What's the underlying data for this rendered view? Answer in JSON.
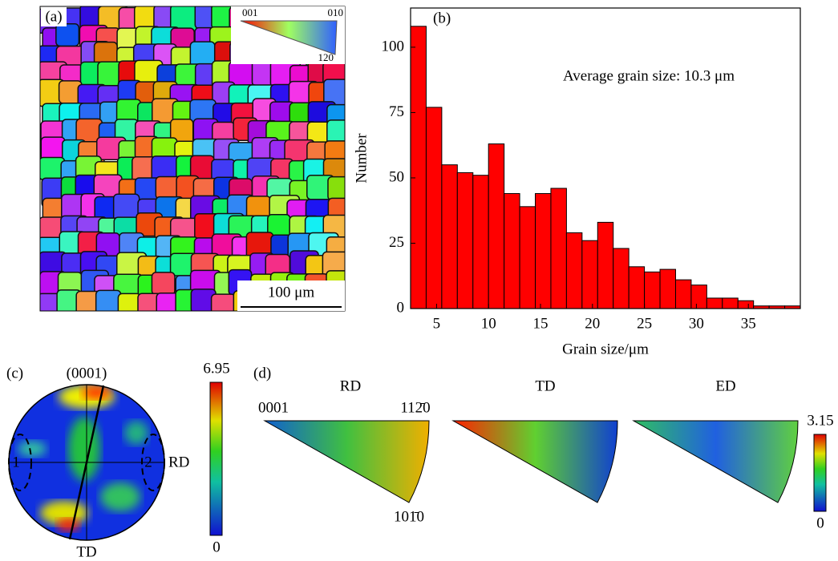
{
  "chart_data": [
    {
      "type": "map",
      "label": "(a)",
      "legend_labels": [
        "001",
        "010",
        "120"
      ],
      "scale_bar": "100 μm"
    },
    {
      "type": "histogram",
      "label": "(b)",
      "annotation": "Average grain size: 10.3 μm",
      "xlabel": "Grain size/μm",
      "ylabel": "Number",
      "color": "#ff0000",
      "bins": [
        2.5,
        4,
        5.5,
        7,
        8.5,
        10,
        11.5,
        13,
        14.5,
        16,
        17.5,
        19,
        20.5,
        22,
        23.5,
        25,
        26.5,
        28,
        29.5,
        31,
        32.5,
        34,
        35.5,
        37,
        38.5,
        40
      ],
      "values": [
        108,
        77,
        55,
        52,
        51,
        63,
        44,
        39,
        44,
        46,
        29,
        26,
        33,
        23,
        16,
        14,
        15,
        11,
        9,
        4,
        4,
        3,
        1,
        1,
        1
      ],
      "xlim": [
        2.5,
        40
      ],
      "xticks": [
        5,
        10,
        15,
        20,
        25,
        30,
        35
      ],
      "ylim": [
        0,
        115
      ],
      "yticks": [
        0,
        25,
        50,
        75,
        100
      ]
    },
    {
      "type": "pole-figure",
      "label": "(c)",
      "title": "(0001)",
      "axis_labels": [
        "RD",
        "TD"
      ],
      "region_labels": [
        "1",
        "2"
      ],
      "colorbar_lim": [
        0,
        6.95
      ],
      "colorbar_ticks": [
        0,
        6.95
      ]
    },
    {
      "type": "inverse-pole-figure",
      "label": "(d)",
      "titles": [
        "RD",
        "TD",
        "ED"
      ],
      "corner_labels": [
        "0001",
        "112̄0",
        "101̄0"
      ],
      "colorbar_lim": [
        0,
        3.15
      ],
      "colorbar_ticks": [
        0,
        3.15
      ]
    }
  ]
}
